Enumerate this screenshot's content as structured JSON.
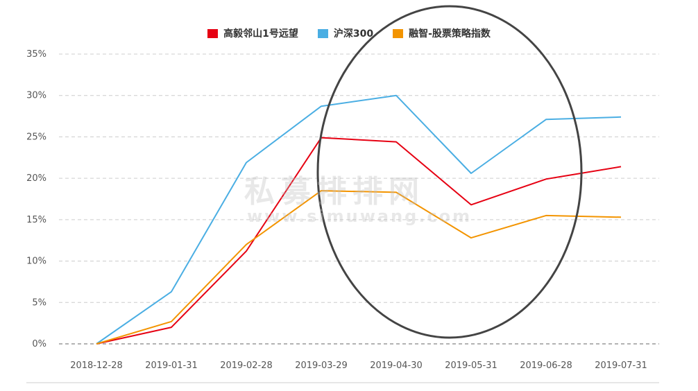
{
  "watermark": {
    "cn": "私募排排网",
    "en": "www.simuwang.com"
  },
  "colors": {
    "gaoyi": "#e60012",
    "hs300": "#4aaee3",
    "rongzhi": "#f39400",
    "circle": "#444444",
    "grid": "#cccccc"
  },
  "chart_data": {
    "type": "line",
    "categories": [
      "2018-12-28",
      "2019-01-31",
      "2019-02-28",
      "2019-03-29",
      "2019-04-30",
      "2019-05-31",
      "2019-06-28",
      "2019-07-31"
    ],
    "series": [
      {
        "name": "高毅邻山1号远望",
        "color": "#e60012",
        "values": [
          0,
          2.0,
          11.2,
          24.9,
          24.4,
          16.8,
          19.9,
          21.4
        ]
      },
      {
        "name": "沪深300",
        "color": "#4aaee3",
        "values": [
          0,
          6.3,
          21.9,
          28.7,
          30.0,
          20.6,
          27.1,
          27.4
        ]
      },
      {
        "name": "融智-股票策略指数",
        "color": "#f39400",
        "values": [
          0,
          2.7,
          12.0,
          18.5,
          18.3,
          12.8,
          15.5,
          15.3
        ]
      }
    ],
    "y_ticks": [
      "0%",
      "5%",
      "10%",
      "15%",
      "20%",
      "25%",
      "30%",
      "35%"
    ],
    "ylim": [
      0,
      35
    ],
    "grid": true,
    "legend_position": "top-center",
    "annotation": "ellipse highlighting 2019-03-29 to 2019-06-28"
  }
}
